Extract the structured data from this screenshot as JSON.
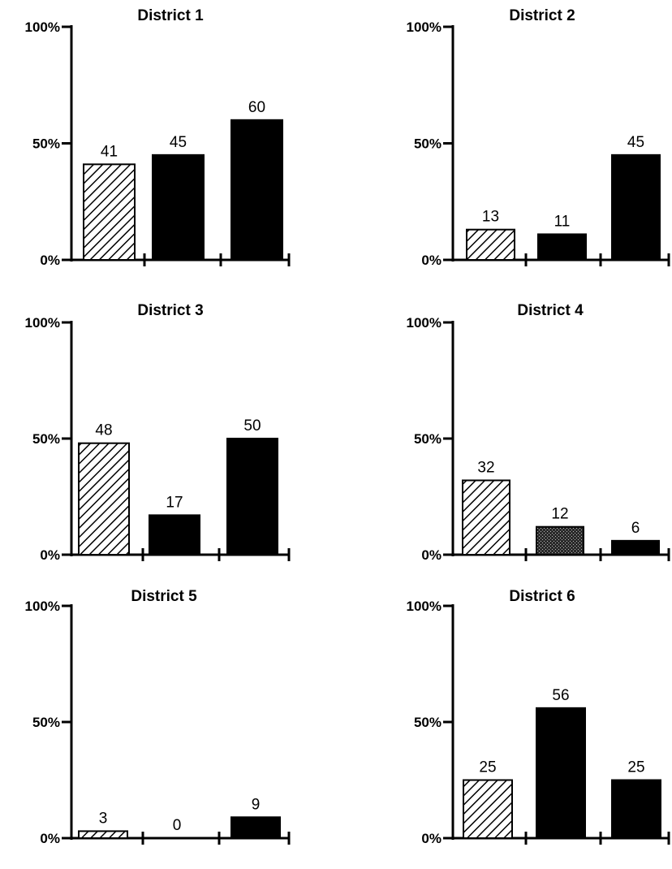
{
  "chart_data": [
    {
      "type": "bar",
      "title": "District 1",
      "yticks": [
        "100%",
        "50%",
        "0%"
      ],
      "ylim": [
        0,
        100
      ],
      "values": [
        41,
        45,
        60
      ],
      "data_labels": [
        "41",
        "45",
        "60"
      ],
      "bar_styles": [
        "hatched",
        "solid",
        "solid"
      ],
      "grid": false
    },
    {
      "type": "bar",
      "title": "District 2",
      "yticks": [
        "100%",
        "50%",
        "0%"
      ],
      "ylim": [
        0,
        100
      ],
      "values": [
        13,
        11,
        45
      ],
      "data_labels": [
        "13",
        "11",
        "45"
      ],
      "bar_styles": [
        "hatched",
        "solid",
        "solid"
      ],
      "grid": false
    },
    {
      "type": "bar",
      "title": "District 3",
      "yticks": [
        "100%",
        "50%",
        "0%"
      ],
      "ylim": [
        0,
        100
      ],
      "values": [
        48,
        17,
        50
      ],
      "data_labels": [
        "48",
        "17",
        "50"
      ],
      "bar_styles": [
        "hatched",
        "solid",
        "solid"
      ],
      "grid": false
    },
    {
      "type": "bar",
      "title": "District 4",
      "yticks": [
        "100%",
        "50%",
        "0%"
      ],
      "ylim": [
        0,
        100
      ],
      "values": [
        32,
        12,
        6
      ],
      "data_labels": [
        "32",
        "12",
        "6"
      ],
      "bar_styles": [
        "hatched",
        "stippled",
        "solid"
      ],
      "grid": false
    },
    {
      "type": "bar",
      "title": "District 5",
      "yticks": [
        "100%",
        "50%",
        "0%"
      ],
      "ylim": [
        0,
        100
      ],
      "values": [
        3,
        0,
        9
      ],
      "data_labels": [
        "3",
        "0",
        "9"
      ],
      "bar_styles": [
        "hatched",
        "solid",
        "solid"
      ],
      "grid": false
    },
    {
      "type": "bar",
      "title": "District 6",
      "yticks": [
        "100%",
        "50%",
        "0%"
      ],
      "ylim": [
        0,
        100
      ],
      "values": [
        25,
        56,
        25
      ],
      "data_labels": [
        "25",
        "56",
        "25"
      ],
      "bar_styles": [
        "hatched",
        "solid",
        "solid"
      ],
      "grid": false
    }
  ],
  "colors": {
    "bar": "#000000",
    "hatch": "#000000",
    "background": "#ffffff",
    "stipple": "#555555"
  }
}
